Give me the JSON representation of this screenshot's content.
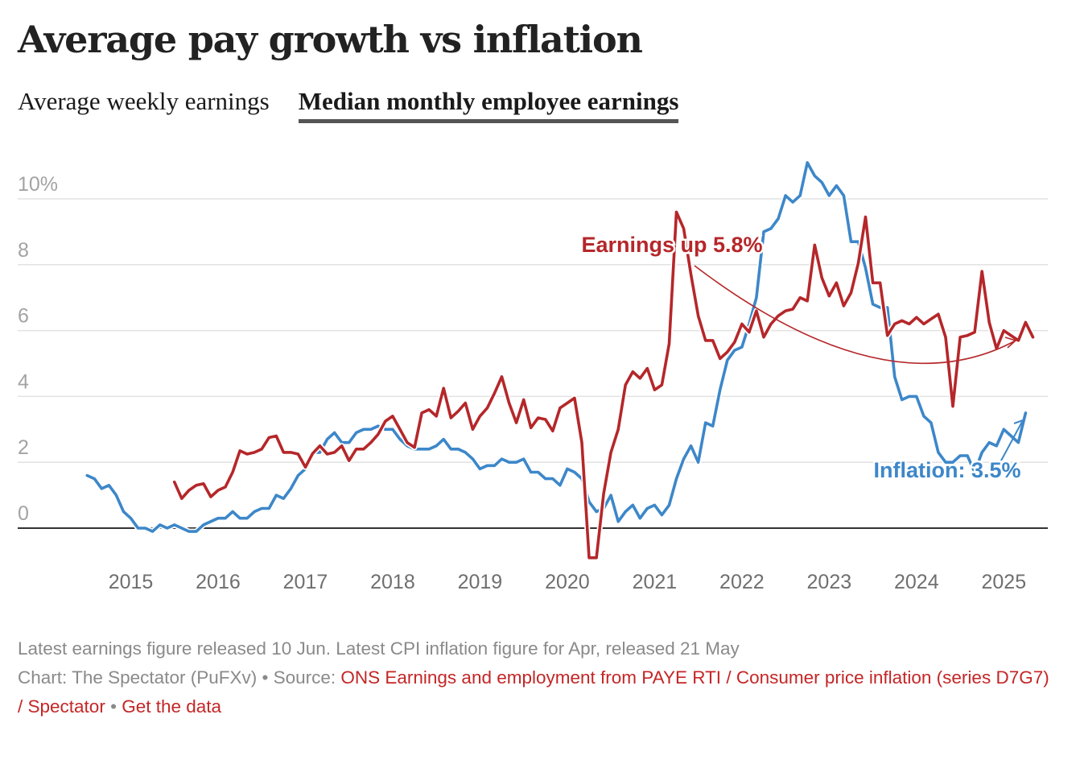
{
  "header": {
    "title": "Average pay growth vs inflation",
    "tabs": [
      {
        "label": "Average weekly earnings",
        "active": false
      },
      {
        "label": "Median monthly employee earnings",
        "active": true
      }
    ]
  },
  "colors": {
    "earnings": "#b5272a",
    "inflation": "#3d87c9",
    "grid": "#e2e2e2",
    "zero_line": "#333333",
    "axis_text": "#a3a3a3",
    "link": "#c42626"
  },
  "chart_data": {
    "type": "line",
    "title": "Average pay growth vs inflation",
    "xlabel": "",
    "ylabel": "",
    "y_unit": "%",
    "ylim": [
      -1,
      11.5
    ],
    "yticks": [
      0,
      2,
      4,
      6,
      8,
      10
    ],
    "ytick_labels": [
      "0",
      "2",
      "4",
      "6",
      "8",
      "10%"
    ],
    "xticks": [
      "2015",
      "2016",
      "2017",
      "2018",
      "2019",
      "2020",
      "2021",
      "2022",
      "2023",
      "2024",
      "2025"
    ],
    "grid": true,
    "legend": "none (direct labels)",
    "series": [
      {
        "name": "Median monthly employee earnings growth",
        "color": "#b5272a",
        "start": "2015-07",
        "frequency": "monthly",
        "values": [
          1.4,
          0.9,
          1.15,
          1.3,
          1.35,
          0.95,
          1.15,
          1.25,
          1.7,
          2.35,
          2.25,
          2.3,
          2.4,
          2.75,
          2.8,
          2.3,
          2.3,
          2.25,
          1.85,
          2.27,
          2.5,
          2.25,
          2.3,
          2.5,
          2.05,
          2.4,
          2.4,
          2.6,
          2.85,
          3.25,
          3.4,
          3.0,
          2.6,
          2.45,
          3.5,
          3.6,
          3.4,
          4.25,
          3.35,
          3.55,
          3.8,
          3.0,
          3.4,
          3.65,
          4.1,
          4.6,
          3.8,
          3.2,
          3.9,
          3.05,
          3.35,
          3.3,
          2.95,
          3.65,
          3.8,
          3.95,
          2.6,
          -0.9,
          -0.9,
          1.05,
          2.3,
          3.0,
          4.35,
          4.75,
          4.55,
          4.85,
          4.2,
          4.35,
          5.6,
          9.6,
          9.1,
          7.7,
          6.45,
          5.7,
          5.7,
          5.15,
          5.35,
          5.65,
          6.2,
          5.95,
          6.6,
          5.8,
          6.2,
          6.45,
          6.6,
          6.65,
          7.0,
          6.9,
          8.6,
          7.6,
          7.05,
          7.45,
          6.75,
          7.15,
          8.05,
          9.45,
          7.45,
          7.45,
          5.85,
          6.2,
          6.3,
          6.2,
          6.4,
          6.2,
          6.35,
          6.5,
          5.8,
          3.7,
          5.8,
          5.85,
          5.95,
          7.8,
          6.25,
          5.45,
          6.0,
          5.85,
          5.7,
          6.25,
          5.8
        ]
      },
      {
        "name": "CPI inflation",
        "color": "#3d87c9",
        "start": "2014-07",
        "frequency": "monthly",
        "values": [
          1.6,
          1.5,
          1.2,
          1.3,
          1.0,
          0.5,
          0.3,
          0.0,
          0.0,
          -0.1,
          0.1,
          0.0,
          0.1,
          0.0,
          -0.1,
          -0.1,
          0.1,
          0.2,
          0.3,
          0.3,
          0.5,
          0.3,
          0.3,
          0.5,
          0.6,
          0.6,
          1.0,
          0.9,
          1.2,
          1.6,
          1.8,
          2.3,
          2.3,
          2.7,
          2.9,
          2.6,
          2.6,
          2.9,
          3.0,
          3.0,
          3.1,
          3.0,
          3.0,
          2.7,
          2.5,
          2.4,
          2.4,
          2.4,
          2.5,
          2.7,
          2.4,
          2.4,
          2.3,
          2.1,
          1.8,
          1.9,
          1.9,
          2.1,
          2.0,
          2.0,
          2.1,
          1.7,
          1.7,
          1.5,
          1.5,
          1.3,
          1.8,
          1.7,
          1.5,
          0.8,
          0.5,
          0.6,
          1.0,
          0.2,
          0.5,
          0.7,
          0.3,
          0.6,
          0.7,
          0.4,
          0.7,
          1.5,
          2.1,
          2.5,
          2.0,
          3.2,
          3.1,
          4.2,
          5.1,
          5.4,
          5.5,
          6.2,
          7.0,
          9.0,
          9.1,
          9.4,
          10.1,
          9.9,
          10.1,
          11.1,
          10.7,
          10.5,
          10.1,
          10.4,
          10.1,
          8.7,
          8.7,
          7.9,
          6.8,
          6.7,
          6.7,
          4.6,
          3.9,
          4.0,
          4.0,
          3.4,
          3.2,
          2.3,
          2.0,
          2.0,
          2.2,
          2.2,
          1.7,
          2.3,
          2.6,
          2.5,
          3.0,
          2.8,
          2.6,
          3.5
        ]
      }
    ],
    "annotations": [
      {
        "text": "Earnings up 5.8%",
        "series": "Median monthly employee earnings growth",
        "points_to": "2025-05"
      },
      {
        "text": "Inflation: 3.5%",
        "series": "CPI inflation",
        "points_to": "2025-04"
      }
    ]
  },
  "footer": {
    "note": "Latest earnings figure released 10 Jun. Latest CPI inflation figure for Apr, released 21 May",
    "credit_prefix": "Chart: The Spectator (PuFXv) • Source: ",
    "source_link": "ONS Earnings and employment from PAYE RTI / Consumer price inflation (series D7G7) / Spectator",
    "separator": " • ",
    "data_link": "Get the data"
  }
}
